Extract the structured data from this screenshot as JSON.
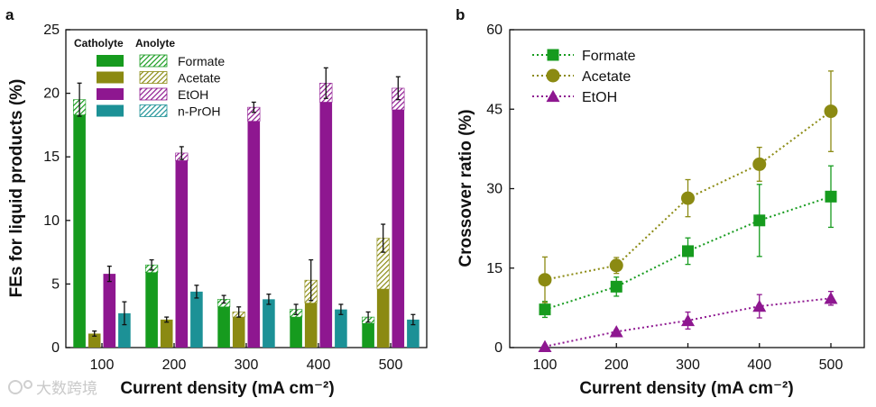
{
  "panels": {
    "a": {
      "label": "a"
    },
    "b": {
      "label": "b"
    }
  },
  "watermark": "大数跨境",
  "colors": {
    "Formate": "#169b1e",
    "Acetate": "#8b8a12",
    "EtOH": "#8e1790",
    "n-PrOH": "#1c9196"
  },
  "chart_data": [
    {
      "type": "bar",
      "panel": "a",
      "title": "",
      "xlabel": "Current density (mA cm⁻²)",
      "ylabel": "FEs  for liquid products (%)",
      "ylim": [
        0,
        25
      ],
      "yticks": [
        0,
        5,
        10,
        15,
        20,
        25
      ],
      "categories": [
        "100",
        "200",
        "300",
        "400",
        "500"
      ],
      "legend": {
        "header_catholyte": "Catholyte",
        "header_anolyte": "Anolyte",
        "entries": [
          "Formate",
          "Acetate",
          "EtOH",
          "n-PrOH"
        ],
        "placement": "top-center"
      },
      "series": [
        {
          "name": "Formate",
          "catholyte": [
            18.3,
            5.9,
            3.2,
            2.4,
            1.9
          ],
          "anolyte": [
            1.2,
            0.6,
            0.6,
            0.6,
            0.5
          ],
          "error": [
            1.3,
            0.4,
            0.3,
            0.4,
            0.4
          ]
        },
        {
          "name": "Acetate",
          "catholyte": [
            1.1,
            2.2,
            2.4,
            3.5,
            4.6
          ],
          "anolyte": [
            0.0,
            0.0,
            0.4,
            1.8,
            4.0
          ],
          "error": [
            0.2,
            0.2,
            0.4,
            1.6,
            1.1
          ]
        },
        {
          "name": "EtOH",
          "catholyte": [
            5.8,
            14.7,
            17.8,
            19.3,
            18.7
          ],
          "anolyte": [
            0.0,
            0.6,
            1.1,
            1.5,
            1.7
          ],
          "error": [
            0.6,
            0.5,
            0.4,
            1.2,
            0.9
          ]
        },
        {
          "name": "n-PrOH",
          "catholyte": [
            2.7,
            4.4,
            3.8,
            3.0,
            2.2
          ],
          "anolyte": [
            0.0,
            0.0,
            0.0,
            0.0,
            0.0
          ],
          "error": [
            0.9,
            0.5,
            0.4,
            0.4,
            0.4
          ]
        }
      ]
    },
    {
      "type": "line",
      "panel": "b",
      "title": "",
      "xlabel": "Current density (mA cm⁻²)",
      "ylabel": "Crossover ratio (%)",
      "ylim": [
        0,
        60
      ],
      "yticks": [
        0,
        15,
        30,
        45,
        60
      ],
      "x": [
        100,
        200,
        300,
        400,
        500
      ],
      "legend_placement": "top-left",
      "series": [
        {
          "name": "Formate",
          "marker": "square",
          "values": [
            7.2,
            11.5,
            18.2,
            24.0,
            28.5
          ],
          "error": [
            1.5,
            1.8,
            2.5,
            6.8,
            5.8
          ]
        },
        {
          "name": "Acetate",
          "marker": "circle",
          "values": [
            12.8,
            15.5,
            28.2,
            34.6,
            44.6
          ],
          "error": [
            4.3,
            1.5,
            3.5,
            3.2,
            7.6
          ]
        },
        {
          "name": "EtOH",
          "marker": "triangle",
          "values": [
            0.2,
            3.0,
            5.1,
            7.8,
            9.3
          ],
          "error": [
            0.2,
            0.3,
            1.6,
            2.2,
            1.3
          ]
        }
      ]
    }
  ]
}
